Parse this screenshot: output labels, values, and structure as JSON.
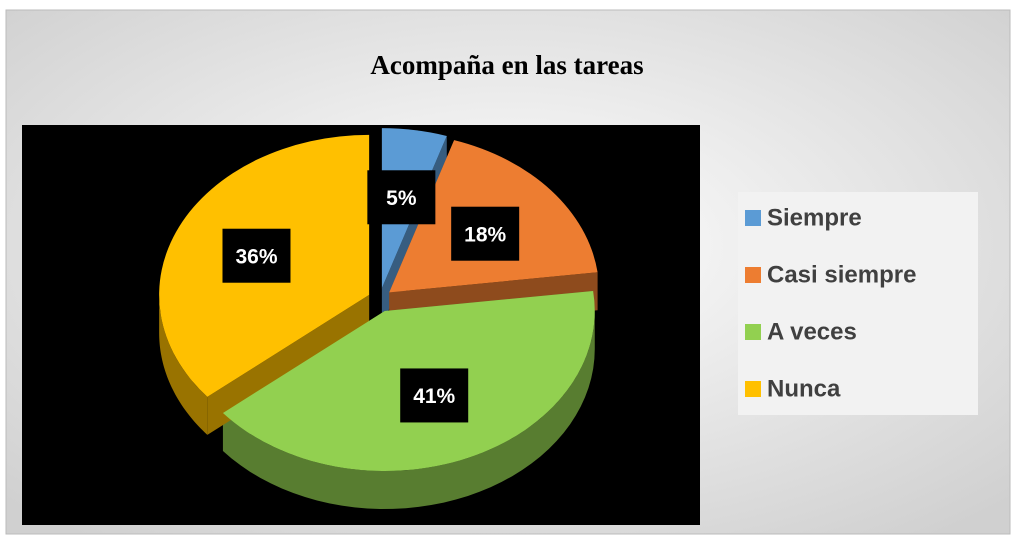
{
  "chart_data": {
    "type": "pie",
    "title": "Acompaña en las tareas",
    "categories": [
      "Siempre",
      "Casi siempre",
      "A veces",
      "Nunca"
    ],
    "values": [
      5,
      18,
      41,
      36
    ],
    "value_labels": [
      "5%",
      "18%",
      "41%",
      "36%"
    ],
    "colors": [
      "#5b9bd5",
      "#ed7d31",
      "#92d050",
      "#ffc000"
    ],
    "legend": "right"
  }
}
